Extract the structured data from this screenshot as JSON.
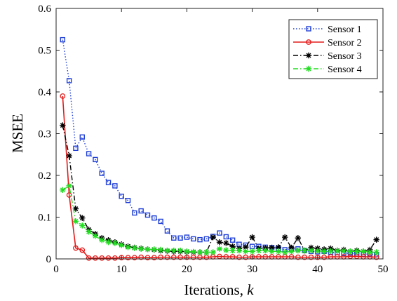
{
  "chart_data": {
    "type": "line",
    "title": "",
    "xlabel": "Iterations,",
    "xlabel_var": "k",
    "ylabel": "MSEE",
    "xlim": [
      0,
      50
    ],
    "ylim": [
      0,
      0.6
    ],
    "xticks": [
      "0",
      "10",
      "20",
      "30",
      "40",
      "50"
    ],
    "yticks": [
      "0",
      "0.1",
      "0.2",
      "0.3",
      "0.4",
      "0.5",
      "0.6"
    ],
    "grid": false,
    "legend_position": "top-right",
    "x": [
      1,
      2,
      3,
      4,
      5,
      6,
      7,
      8,
      9,
      10,
      11,
      12,
      13,
      14,
      15,
      16,
      17,
      18,
      19,
      20,
      21,
      22,
      23,
      24,
      25,
      26,
      27,
      28,
      29,
      30,
      31,
      32,
      33,
      34,
      35,
      36,
      37,
      38,
      39,
      40,
      41,
      42,
      43,
      44,
      45,
      46,
      47,
      48,
      49
    ],
    "series": [
      {
        "name": "Sensor 1",
        "color": "#1f3fd6",
        "line_style": "dotted",
        "marker": "square",
        "values": [
          0.525,
          0.427,
          0.265,
          0.292,
          0.252,
          0.238,
          0.205,
          0.183,
          0.175,
          0.15,
          0.14,
          0.11,
          0.115,
          0.105,
          0.098,
          0.09,
          0.067,
          0.05,
          0.05,
          0.052,
          0.048,
          0.046,
          0.048,
          0.054,
          0.062,
          0.053,
          0.045,
          0.035,
          0.033,
          0.03,
          0.03,
          0.028,
          0.027,
          0.025,
          0.022,
          0.024,
          0.024,
          0.02,
          0.018,
          0.017,
          0.018,
          0.016,
          0.015,
          0.013,
          0.014,
          0.012,
          0.011,
          0.012,
          0.01
        ]
      },
      {
        "name": "Sensor 2",
        "color": "#e41a1a",
        "line_style": "solid",
        "marker": "circle",
        "values": [
          0.39,
          0.153,
          0.026,
          0.021,
          0.002,
          0.002,
          0.002,
          0.002,
          0.002,
          0.003,
          0.003,
          0.003,
          0.004,
          0.003,
          0.003,
          0.004,
          0.004,
          0.004,
          0.004,
          0.004,
          0.004,
          0.004,
          0.004,
          0.005,
          0.006,
          0.005,
          0.005,
          0.004,
          0.004,
          0.005,
          0.005,
          0.005,
          0.005,
          0.005,
          0.005,
          0.005,
          0.004,
          0.004,
          0.004,
          0.004,
          0.004,
          0.005,
          0.005,
          0.005,
          0.006,
          0.006,
          0.005,
          0.005,
          0.004
        ]
      },
      {
        "name": "Sensor 3",
        "color": "#000000",
        "line_style": "dashdot",
        "marker": "star",
        "values": [
          0.32,
          0.247,
          0.12,
          0.098,
          0.07,
          0.06,
          0.05,
          0.045,
          0.04,
          0.035,
          0.03,
          0.027,
          0.025,
          0.023,
          0.022,
          0.02,
          0.019,
          0.018,
          0.018,
          0.017,
          0.016,
          0.016,
          0.016,
          0.052,
          0.04,
          0.038,
          0.03,
          0.025,
          0.028,
          0.052,
          0.025,
          0.026,
          0.027,
          0.028,
          0.052,
          0.027,
          0.05,
          0.02,
          0.027,
          0.025,
          0.023,
          0.025,
          0.02,
          0.022,
          0.018,
          0.02,
          0.018,
          0.022,
          0.046
        ]
      },
      {
        "name": "Sensor 4",
        "color": "#22dd22",
        "line_style": "dashdot",
        "marker": "star",
        "values": [
          0.165,
          0.175,
          0.09,
          0.08,
          0.065,
          0.055,
          0.045,
          0.04,
          0.038,
          0.033,
          0.028,
          0.026,
          0.024,
          0.023,
          0.023,
          0.022,
          0.02,
          0.02,
          0.02,
          0.018,
          0.017,
          0.016,
          0.016,
          0.016,
          0.024,
          0.021,
          0.02,
          0.02,
          0.018,
          0.018,
          0.02,
          0.02,
          0.018,
          0.018,
          0.016,
          0.018,
          0.02,
          0.02,
          0.02,
          0.019,
          0.018,
          0.019,
          0.019,
          0.019,
          0.018,
          0.018,
          0.018,
          0.016,
          0.016
        ]
      }
    ]
  }
}
